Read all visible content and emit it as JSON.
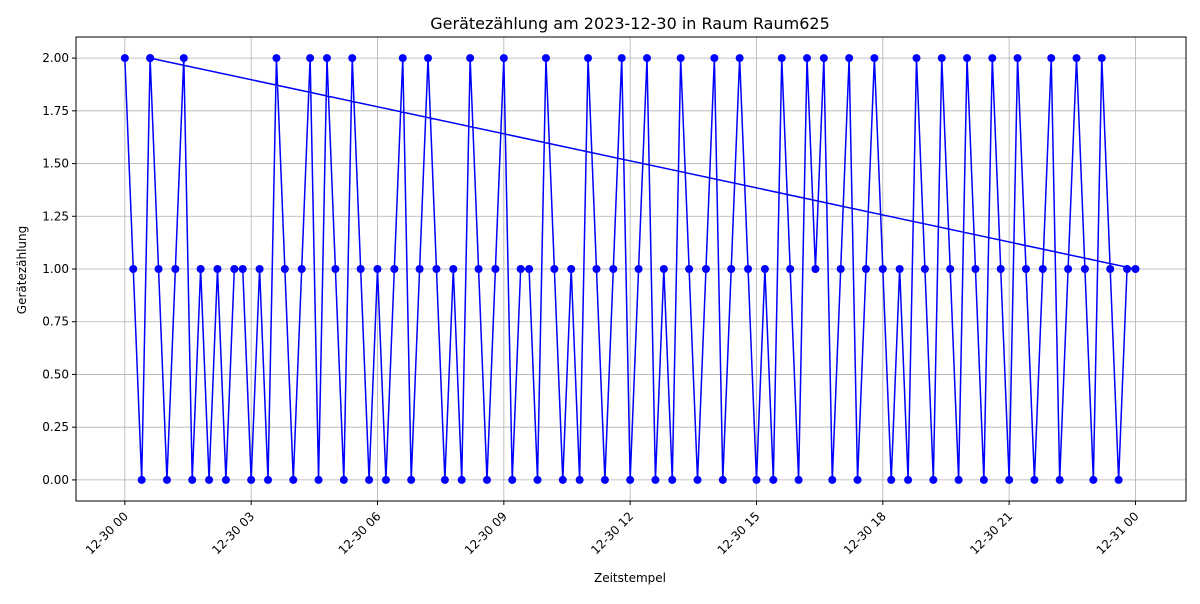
{
  "chart_data": {
    "type": "line",
    "title": "Gerätezählung am 2023-12-30 in Raum Raum625",
    "x_label": "Zeitstempel",
    "y_label": "Gerätezählung",
    "x": [
      0,
      0.2,
      0.4,
      0.6,
      0.8,
      1,
      1.2,
      1.4,
      1.6,
      1.8,
      2,
      2.2,
      2.4,
      2.6,
      2.8,
      3,
      3.2,
      3.4,
      3.6,
      3.8,
      4,
      4.2,
      4.4,
      4.6,
      4.8,
      5,
      5.2,
      5.4,
      5.6,
      5.8,
      6,
      6.2,
      6.4,
      6.6,
      6.8,
      7,
      7.2,
      7.4,
      7.6,
      7.8,
      8,
      8.2,
      8.4,
      8.6,
      8.8,
      9,
      9.2,
      9.4,
      9.6,
      9.8,
      10,
      10.2,
      10.4,
      10.6,
      10.8,
      11,
      11.2,
      11.4,
      11.6,
      11.8,
      12,
      12.2,
      12.4,
      12.6,
      12.8,
      13,
      13.2,
      13.4,
      13.6,
      13.8,
      14,
      14.2,
      14.4,
      14.6,
      14.8,
      15,
      15.2,
      15.4,
      15.6,
      15.8,
      16,
      16.2,
      16.4,
      16.6,
      16.8,
      17,
      17.2,
      17.4,
      17.6,
      17.8,
      18,
      18.2,
      18.4,
      18.6,
      18.8,
      19,
      19.2,
      19.4,
      19.6,
      19.8,
      20,
      20.2,
      20.4,
      20.6,
      20.8,
      21,
      21.2,
      21.4,
      21.6,
      21.8,
      22,
      22.2,
      22.4,
      22.6,
      22.8,
      23,
      23.2,
      23.4,
      23.6,
      23.8,
      24,
      0.6
    ],
    "series": [
      {
        "color": "#0000ff",
        "values": [
          2,
          1,
          0,
          2,
          1,
          0,
          1,
          2,
          0,
          1,
          0,
          1,
          0,
          1,
          1,
          0,
          1,
          0,
          2,
          1,
          0,
          1,
          2,
          0,
          2,
          1,
          0,
          2,
          1,
          0,
          1,
          0,
          1,
          2,
          0,
          1,
          2,
          1,
          0,
          1,
          0,
          2,
          1,
          0,
          1,
          2,
          0,
          1,
          1,
          0,
          2,
          1,
          0,
          1,
          0,
          2,
          1,
          0,
          1,
          2,
          0,
          1,
          2,
          0,
          1,
          0,
          2,
          1,
          0,
          1,
          2,
          0,
          1,
          2,
          1,
          0,
          1,
          0,
          2,
          1,
          0,
          2,
          1,
          2,
          0,
          1,
          2,
          0,
          1,
          2,
          1,
          0,
          1,
          0,
          2,
          1,
          0,
          2,
          1,
          0,
          2,
          1,
          0,
          2,
          1,
          0,
          2,
          1,
          0,
          1,
          2,
          0,
          1,
          2,
          1,
          0,
          2,
          1,
          0,
          1,
          1,
          2
        ]
      }
    ],
    "xlim": [
      -1.16,
      25.2
    ],
    "xticks": [
      {
        "value": 0,
        "label": "12-30 00"
      },
      {
        "value": 3,
        "label": "12-30 03"
      },
      {
        "value": 6,
        "label": "12-30 06"
      },
      {
        "value": 9,
        "label": "12-30 09"
      },
      {
        "value": 12,
        "label": "12-30 12"
      },
      {
        "value": 15,
        "label": "12-30 15"
      },
      {
        "value": 18,
        "label": "12-30 18"
      },
      {
        "value": 21,
        "label": "12-30 21"
      },
      {
        "value": 24,
        "label": "12-31 00"
      }
    ],
    "ylim": [
      -0.1,
      2.1
    ],
    "yticks": [
      {
        "value": 0,
        "label": "0.00"
      },
      {
        "value": 0.25,
        "label": "0.25"
      },
      {
        "value": 0.5,
        "label": "0.50"
      },
      {
        "value": 0.75,
        "label": "0.75"
      },
      {
        "value": 1,
        "label": "1.00"
      },
      {
        "value": 1.25,
        "label": "1.25"
      },
      {
        "value": 1.5,
        "label": "1.50"
      },
      {
        "value": 1.75,
        "label": "1.75"
      },
      {
        "value": 2,
        "label": "2.00"
      }
    ],
    "grid": true
  }
}
